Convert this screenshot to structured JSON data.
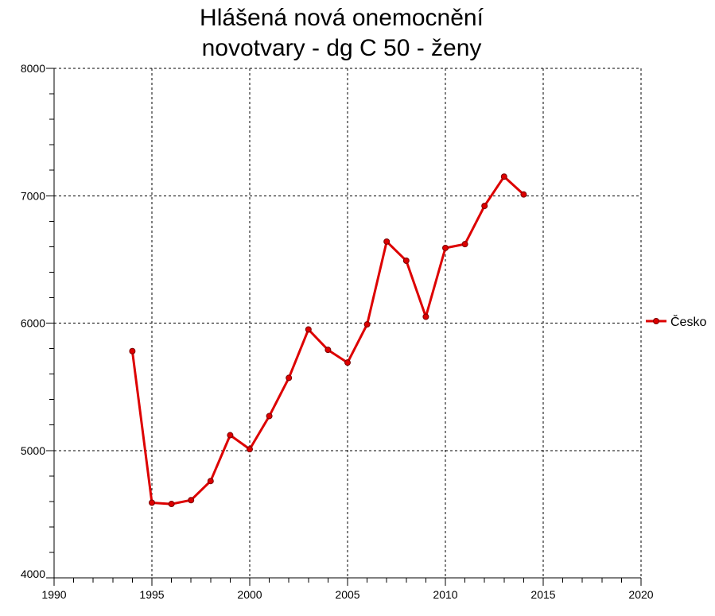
{
  "chart_data": {
    "type": "line",
    "title_lines": [
      "Hlášená nová onemocnění",
      "novotvary - dg C 50 - ženy"
    ],
    "xlabel": "",
    "ylabel": "",
    "xlim": [
      1990,
      2020
    ],
    "ylim": [
      4000,
      8000
    ],
    "x_ticks": [
      1990,
      1995,
      2000,
      2005,
      2010,
      2015,
      2020
    ],
    "y_ticks": [
      4000,
      5000,
      6000,
      7000,
      8000
    ],
    "grid": true,
    "legend_position": "right",
    "series": [
      {
        "name": "Česko",
        "color": "#dd0000",
        "x": [
          1994,
          1995,
          1996,
          1997,
          1998,
          1999,
          2000,
          2001,
          2002,
          2003,
          2004,
          2005,
          2006,
          2007,
          2008,
          2009,
          2010,
          2011,
          2012,
          2013,
          2014
        ],
        "y": [
          5780,
          4590,
          4580,
          4610,
          4760,
          5120,
          5010,
          5270,
          5570,
          5950,
          5790,
          5690,
          5990,
          6640,
          6490,
          6050,
          6590,
          6620,
          6920,
          7150,
          7010
        ]
      }
    ]
  }
}
